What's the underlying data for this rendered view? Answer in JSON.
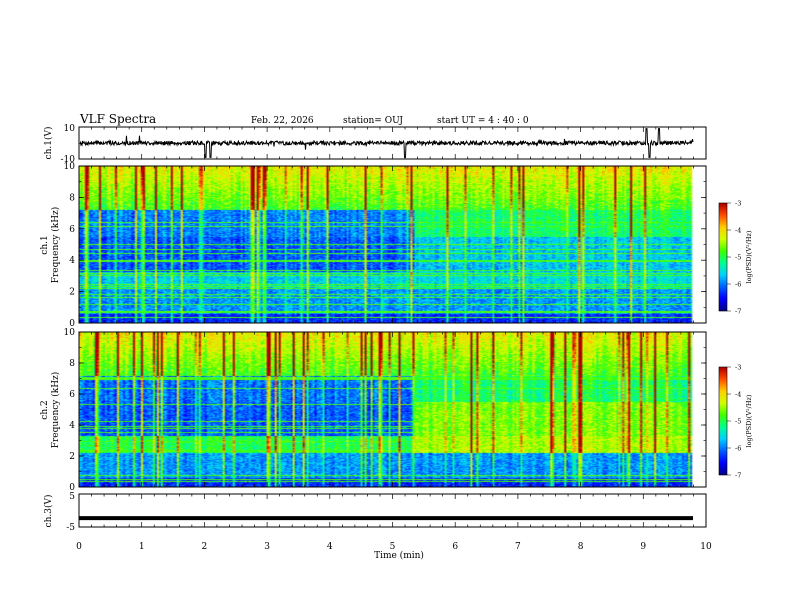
{
  "header": {
    "title": "VLF Spectra",
    "date": "Feb. 22, 2026",
    "station": "station= OUJ",
    "start": "start  UT =   4 : 40 : 0"
  },
  "colors": {
    "bg": "#ffffff",
    "axis": "#000000",
    "colormap": [
      "#00008a",
      "#0000ff",
      "#0060ff",
      "#00d0ff",
      "#00ff90",
      "#40ff00",
      "#d0ff00",
      "#ffd000",
      "#ff5000",
      "#b00000"
    ]
  },
  "chart_data": [
    {
      "type": "line",
      "id": "ch1-waveform",
      "ylabel": "ch.1(V)",
      "yticks": [
        "10",
        "-10"
      ],
      "ylim": [
        -10,
        10
      ],
      "xlim": [
        0,
        10
      ],
      "description_values": {
        "baseline": 0,
        "spikes_min": [
          2.02,
          2.1,
          5.2,
          9.1
        ],
        "spikes_max": [
          9.05,
          9.25
        ]
      }
    },
    {
      "type": "heatmap",
      "id": "ch1-spectrogram",
      "ylabel_top": "ch.1",
      "ylabel": "Frequency (kHz)",
      "xlim": [
        0,
        10
      ],
      "ylim": [
        0,
        10
      ],
      "yticks": [
        "0",
        "2",
        "4",
        "6",
        "8",
        "10"
      ],
      "colorbar": {
        "label": "log(PSD)(V²/Hz)",
        "range": [
          -7,
          -3
        ],
        "ticks": [
          "-3",
          "-4",
          "-5",
          "-6",
          "-7"
        ]
      },
      "change_time_min": 5.35,
      "seed": 11
    },
    {
      "type": "heatmap",
      "id": "ch2-spectrogram",
      "ylabel_top": "ch.2",
      "ylabel": "Frequency (kHz)",
      "xlim": [
        0,
        10
      ],
      "ylim": [
        0,
        10
      ],
      "yticks": [
        "0",
        "2",
        "4",
        "6",
        "8",
        "10"
      ],
      "colorbar": {
        "label": "log(PSD)(V²/Hz)",
        "range": [
          -7,
          -3
        ],
        "ticks": [
          "-3",
          "-4",
          "-5",
          "-6",
          "-7"
        ]
      },
      "change_time_min": 5.35,
      "seed": 29
    },
    {
      "type": "line",
      "id": "ch3-waveform",
      "ylabel": "ch.3(V)",
      "yticks": [
        "5",
        "-5"
      ],
      "ylim": [
        -5,
        5
      ],
      "xlim": [
        0,
        10
      ],
      "value": -2.3
    }
  ],
  "xaxis": {
    "label": "Time (min)",
    "ticks": [
      "0",
      "1",
      "2",
      "3",
      "4",
      "5",
      "6",
      "7",
      "8",
      "9",
      "10"
    ]
  }
}
